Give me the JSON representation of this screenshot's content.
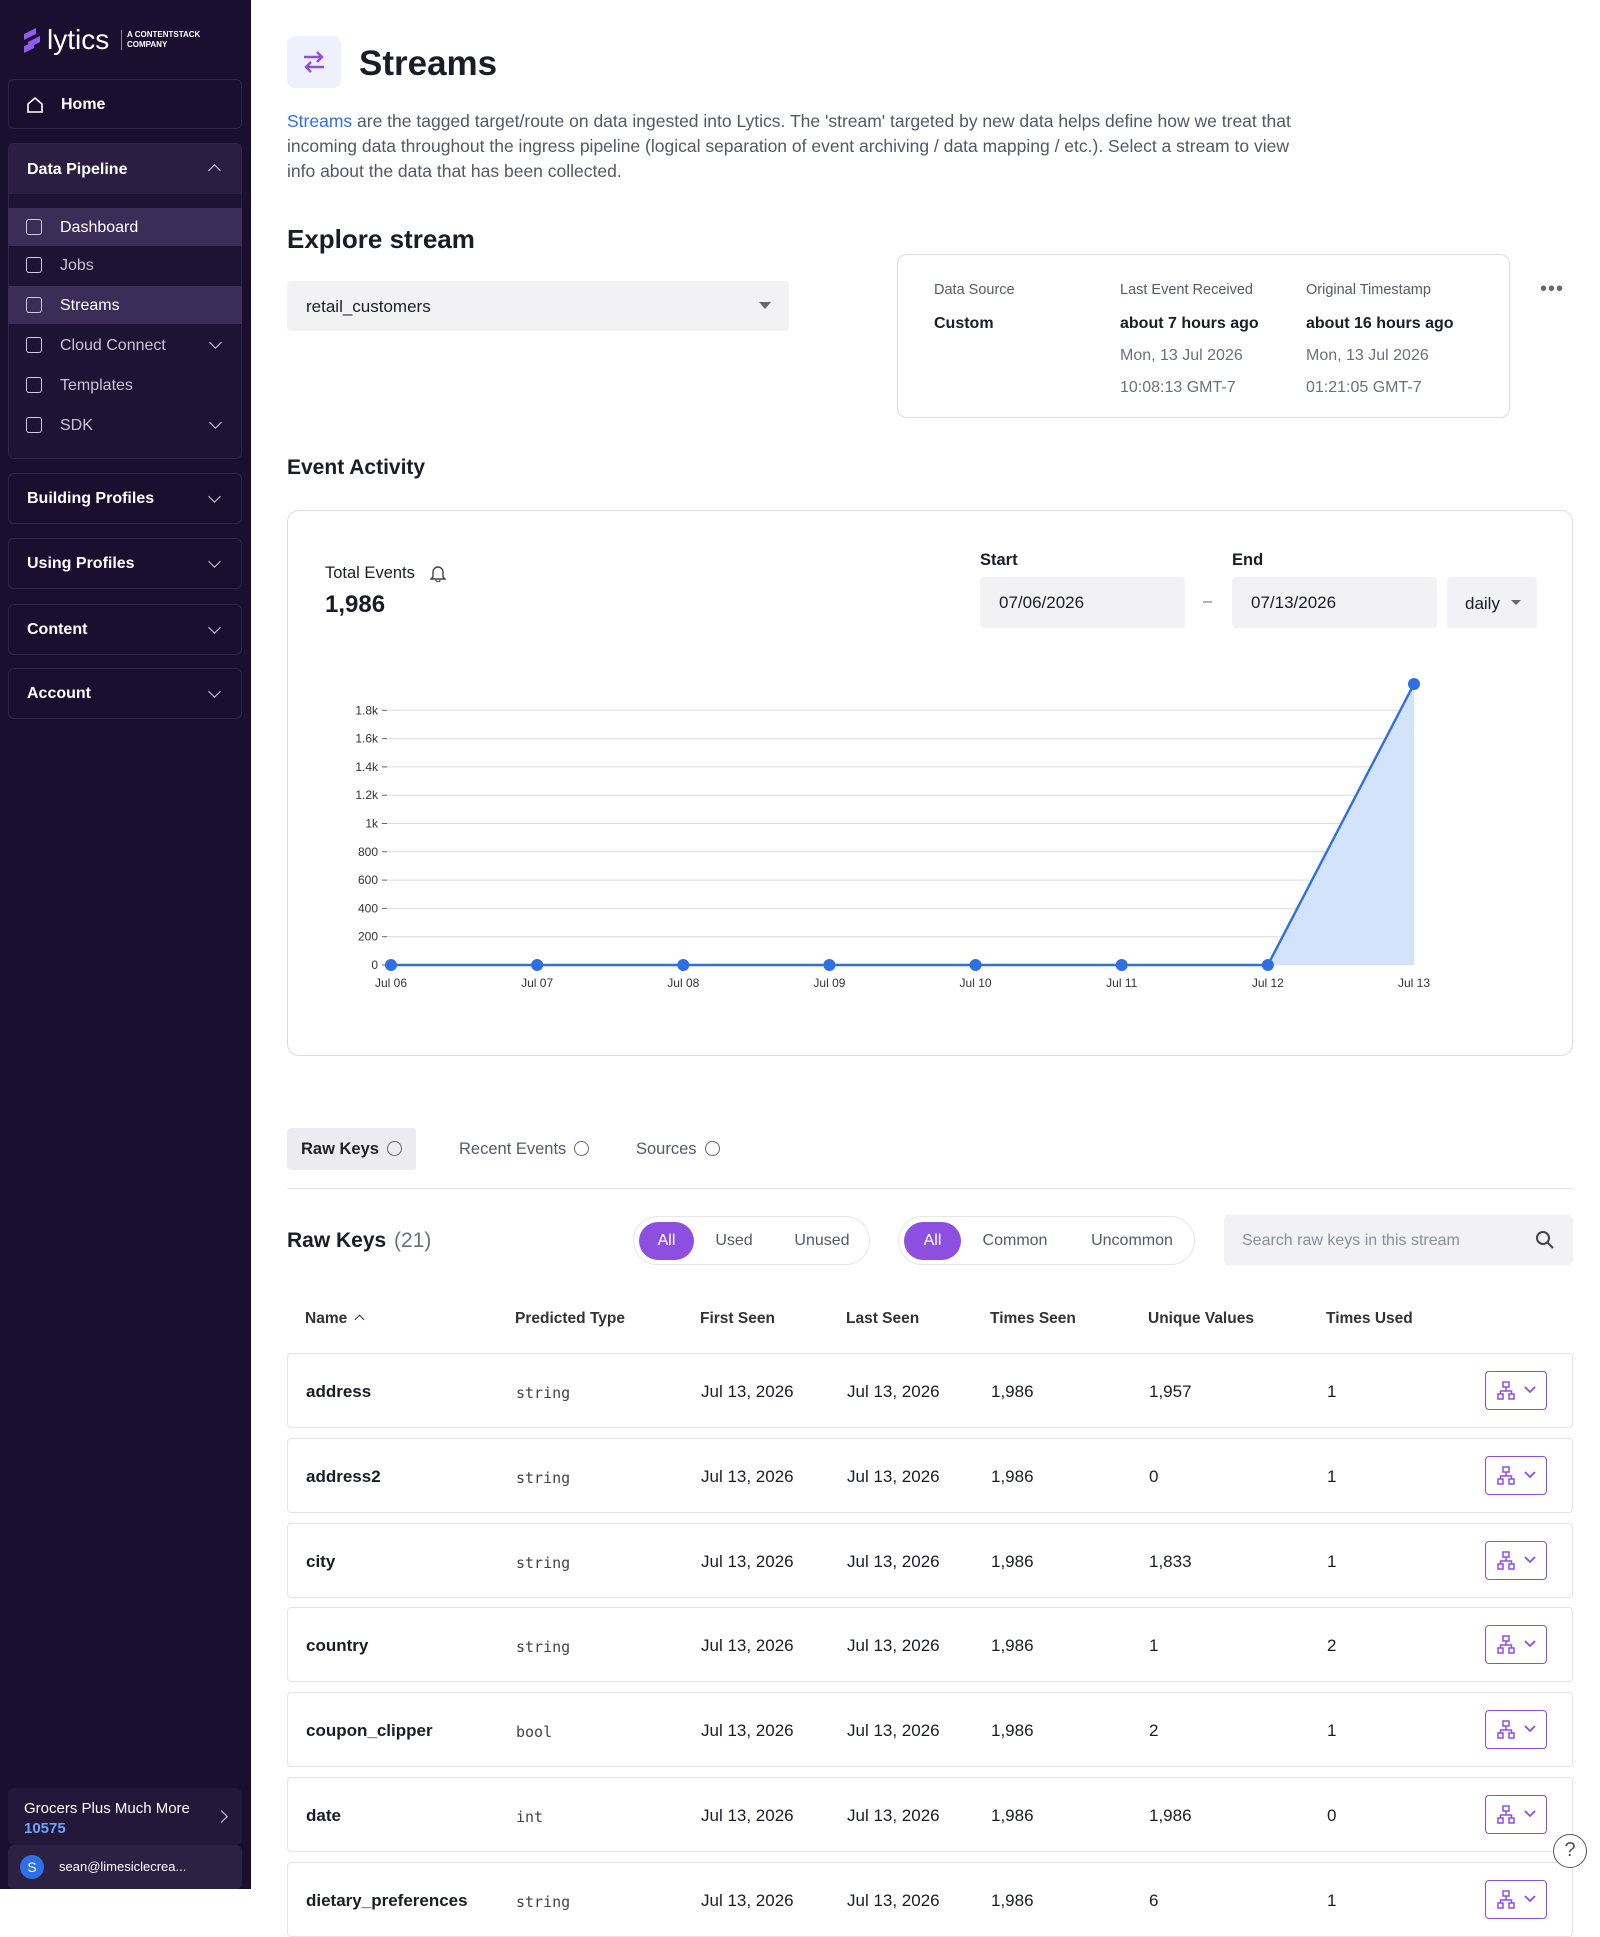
{
  "sidebar": {
    "brand": "lytics",
    "brand_tag": "A CONTENTSTACK COMPANY",
    "home": "Home",
    "groups": [
      {
        "label": "Data Pipeline",
        "items": [
          "Dashboard",
          "Jobs",
          "Streams",
          "Cloud Connect",
          "Templates",
          "SDK"
        ]
      },
      {
        "label": "Building Profiles"
      },
      {
        "label": "Using Profiles"
      },
      {
        "label": "Content"
      },
      {
        "label": "Account"
      }
    ],
    "account": {
      "name": "Grocers Plus Much More",
      "id": "10575"
    },
    "user": {
      "initial": "S",
      "email": "sean@limesiclecrea..."
    }
  },
  "header": {
    "title": "Streams",
    "link": "Streams",
    "description": "are the tagged target/route on data ingested into Lytics. The 'stream' targeted by new data helps define how we treat that incoming data throughout the ingress pipeline (logical separation of event archiving / data mapping / etc.). Select a stream to view info about the data that has been collected."
  },
  "explore": {
    "title": "Explore stream",
    "stream": "retail_customers",
    "info": [
      {
        "label": "Data Source",
        "value": "Custom"
      },
      {
        "label": "Last Event Received",
        "value": "about 7 hours ago",
        "date": "Mon, 13 Jul 2026",
        "time": "10:08:13 GMT-7"
      },
      {
        "label": "Original Timestamp",
        "value": "about 16 hours ago",
        "date": "Mon, 13 Jul 2026",
        "time": "01:21:05 GMT-7"
      }
    ]
  },
  "activity": {
    "title": "Event Activity",
    "total_label": "Total Events",
    "total": "1,986",
    "start_label": "Start",
    "start": "07/06/2026",
    "separator": "–",
    "end_label": "End",
    "end": "07/13/2026",
    "interval": "daily"
  },
  "chart_data": {
    "type": "line",
    "categories": [
      "Jul 06",
      "Jul 07",
      "Jul 08",
      "Jul 09",
      "Jul 10",
      "Jul 11",
      "Jul 12",
      "Jul 13"
    ],
    "values": [
      0,
      0,
      0,
      0,
      0,
      0,
      0,
      1986
    ],
    "color": "#2f6fe4",
    "fill": "#d3e3fb",
    "ylim": [
      0,
      2000
    ],
    "yticks": [
      0,
      200,
      400,
      600,
      800,
      {
        "value": 1000,
        "label": "1k"
      },
      {
        "value": 1200,
        "label": "1.2k"
      },
      {
        "value": 1400,
        "label": "1.4k"
      },
      {
        "value": 1600,
        "label": "1.6k"
      },
      {
        "value": 1800,
        "label": "1.8k"
      }
    ],
    "grid": true
  },
  "tabs": [
    "Raw Keys",
    "Recent Events",
    "Sources"
  ],
  "raw_keys": {
    "title": "Raw Keys",
    "count": "(21)",
    "usage_filters": [
      "All",
      "Used",
      "Unused"
    ],
    "commonality_filters": [
      "All",
      "Common",
      "Uncommon"
    ],
    "search_placeholder": "Search raw keys in this stream"
  },
  "table": {
    "columns": [
      "Name",
      "Predicted Type",
      "First Seen",
      "Last Seen",
      "Times Seen",
      "Unique Values",
      "Times Used"
    ],
    "rows": [
      [
        "address",
        "string",
        "Jul 13, 2026",
        "Jul 13, 2026",
        "1,986",
        "1,957",
        "1"
      ],
      [
        "address2",
        "string",
        "Jul 13, 2026",
        "Jul 13, 2026",
        "1,986",
        "0",
        "1"
      ],
      [
        "city",
        "string",
        "Jul 13, 2026",
        "Jul 13, 2026",
        "1,986",
        "1,833",
        "1"
      ],
      [
        "country",
        "string",
        "Jul 13, 2026",
        "Jul 13, 2026",
        "1,986",
        "1",
        "2"
      ],
      [
        "coupon_clipper",
        "bool",
        "Jul 13, 2026",
        "Jul 13, 2026",
        "1,986",
        "2",
        "1"
      ],
      [
        "date",
        "int",
        "Jul 13, 2026",
        "Jul 13, 2026",
        "1,986",
        "1,986",
        "0"
      ],
      [
        "dietary_preferences",
        "string",
        "Jul 13, 2026",
        "Jul 13, 2026",
        "1,986",
        "6",
        "1"
      ]
    ]
  }
}
